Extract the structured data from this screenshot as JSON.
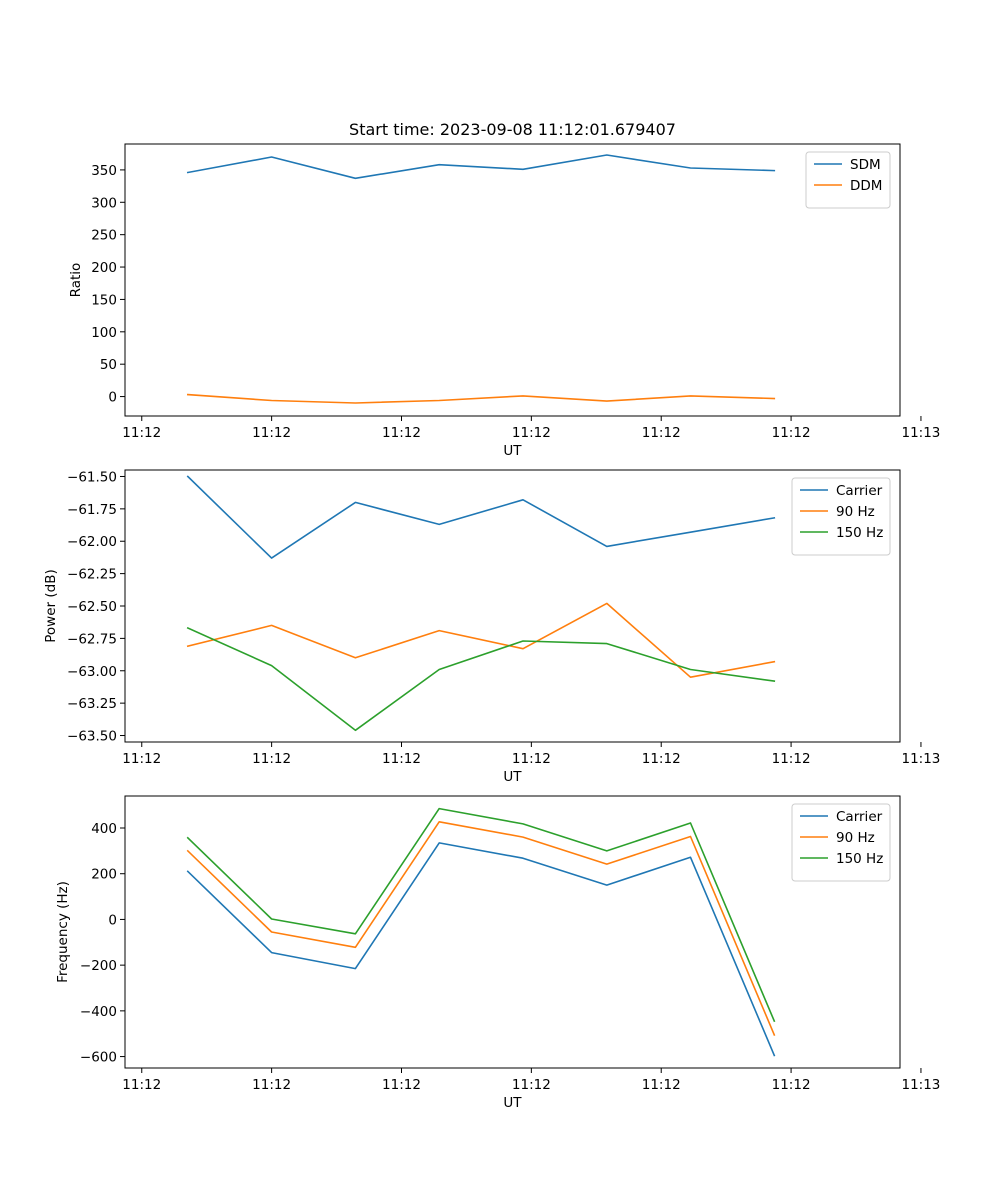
{
  "chart_data": [
    {
      "type": "line",
      "title": "Start time: 2023-09-08 11:12:01.679407",
      "xlabel": "UT",
      "ylabel": "Ratio",
      "xlim": [
        0,
        9.25
      ],
      "ylim": [
        -30,
        390
      ],
      "yticks": [
        0,
        50,
        100,
        150,
        200,
        250,
        300,
        350
      ],
      "x": [
        0.75,
        1.75,
        2.75,
        3.75,
        4.75,
        5.75,
        6.75,
        7.75
      ],
      "xticks": [
        0.2,
        1.75,
        3.3,
        4.85,
        6.4,
        7.95,
        9.5
      ],
      "xtick_labels": [
        "11:12",
        "11:12",
        "11:12",
        "11:12",
        "11:12",
        "11:12",
        "11:13"
      ],
      "legend": "upper right",
      "series": [
        {
          "name": "SDM",
          "color": "#1f77b4",
          "values": [
            346,
            370,
            337,
            358,
            351,
            373,
            353,
            349
          ]
        },
        {
          "name": "DDM",
          "color": "#ff7f0e",
          "values": [
            3,
            -6,
            -10,
            -6,
            1,
            -7,
            1,
            -3
          ]
        }
      ]
    },
    {
      "type": "line",
      "title": "",
      "xlabel": "UT",
      "ylabel": "Power (dB)",
      "xlim": [
        0,
        9.25
      ],
      "ylim": [
        -63.55,
        -61.45
      ],
      "yticks": [
        -63.5,
        -63.25,
        -63.0,
        -62.75,
        -62.5,
        -62.25,
        -62.0,
        -61.75,
        -61.5
      ],
      "ytick_labels": [
        "−63.50",
        "−63.25",
        "−63.00",
        "−62.75",
        "−62.50",
        "−62.25",
        "−62.00",
        "−61.75",
        "−61.50"
      ],
      "x": [
        0.75,
        1.75,
        2.75,
        3.75,
        4.75,
        5.75,
        6.75,
        7.75
      ],
      "xticks": [
        0.2,
        1.75,
        3.3,
        4.85,
        6.4,
        7.95,
        9.5
      ],
      "xtick_labels": [
        "11:12",
        "11:12",
        "11:12",
        "11:12",
        "11:12",
        "11:12",
        "11:13"
      ],
      "legend": "upper right",
      "series": [
        {
          "name": "Carrier",
          "color": "#1f77b4",
          "values": [
            -61.5,
            -62.13,
            -61.7,
            -61.87,
            -61.68,
            -62.04,
            -61.93,
            -61.82
          ]
        },
        {
          "name": "90 Hz",
          "color": "#ff7f0e",
          "values": [
            -62.81,
            -62.65,
            -62.9,
            -62.69,
            -62.83,
            -62.48,
            -63.05,
            -62.93
          ]
        },
        {
          "name": "150 Hz",
          "color": "#2ca02c",
          "values": [
            -62.67,
            -62.96,
            -63.46,
            -62.99,
            -62.77,
            -62.79,
            -62.99,
            -63.08
          ]
        }
      ]
    },
    {
      "type": "line",
      "title": "",
      "xlabel": "UT",
      "ylabel": "Frequency (Hz)",
      "xlim": [
        0,
        9.25
      ],
      "ylim": [
        -650,
        540
      ],
      "yticks": [
        -600,
        -400,
        -200,
        0,
        200,
        400
      ],
      "ytick_labels": [
        "−600",
        "−400",
        "−200",
        "0",
        "200",
        "400"
      ],
      "x": [
        0.75,
        1.75,
        2.75,
        3.75,
        4.75,
        5.75,
        6.75,
        7.75
      ],
      "xticks": [
        0.2,
        1.75,
        3.3,
        4.85,
        6.4,
        7.95,
        9.5
      ],
      "xtick_labels": [
        "11:12",
        "11:12",
        "11:12",
        "11:12",
        "11:12",
        "11:12",
        "11:13"
      ],
      "legend": "upper right",
      "series": [
        {
          "name": "Carrier",
          "color": "#1f77b4",
          "values": [
            210,
            -145,
            -215,
            335,
            268,
            150,
            272,
            -595
          ]
        },
        {
          "name": "90 Hz",
          "color": "#ff7f0e",
          "values": [
            300,
            -55,
            -122,
            427,
            360,
            242,
            363,
            -505
          ]
        },
        {
          "name": "150 Hz",
          "color": "#2ca02c",
          "values": [
            357,
            2,
            -63,
            485,
            418,
            300,
            422,
            -445
          ]
        }
      ]
    }
  ]
}
